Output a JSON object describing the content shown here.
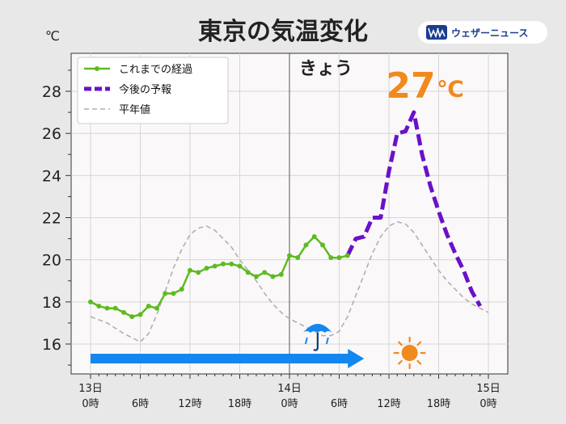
{
  "header": {
    "title": "東京の気温変化",
    "unit": "℃",
    "brand_text": "ウェザーニュース",
    "brand_logo": "wn-logo-icon"
  },
  "annotations": {
    "today_label": "きょう",
    "peak_value": "27",
    "peak_unit": "℃"
  },
  "colors": {
    "observed": "#5dbb1f",
    "forecast": "#6a11c8",
    "normal": "#b0b0b0",
    "rain_arrow": "#1486f0",
    "sun": "#f08a1c",
    "peak_text": "#f08a1c"
  },
  "icons": {
    "rain": "umbrella-rain-icon",
    "sun": "sun-icon"
  },
  "chart_data": {
    "type": "line",
    "x_unit": "hours from 13日 0時",
    "xlim": [
      0,
      48
    ],
    "ylim": [
      15,
      30
    ],
    "yticks": [
      16,
      18,
      20,
      22,
      24,
      26,
      28
    ],
    "xticks": [
      {
        "x": 0,
        "line1": "13日",
        "line2": "0時"
      },
      {
        "x": 6,
        "line1": "",
        "line2": "6時"
      },
      {
        "x": 12,
        "line1": "",
        "line2": "12時"
      },
      {
        "x": 18,
        "line1": "",
        "line2": "18時"
      },
      {
        "x": 24,
        "line1": "14日",
        "line2": "0時"
      },
      {
        "x": 30,
        "line1": "",
        "line2": "6時"
      },
      {
        "x": 36,
        "line1": "",
        "line2": "12時"
      },
      {
        "x": 42,
        "line1": "",
        "line2": "18時"
      },
      {
        "x": 48,
        "line1": "15日",
        "line2": "0時"
      }
    ],
    "today_marker_x": 24,
    "grid": true,
    "legend": {
      "position": "top-left"
    },
    "series": [
      {
        "name": "これまでの経過",
        "style": "solid-markers",
        "x": [
          0,
          1,
          2,
          3,
          4,
          5,
          6,
          7,
          8,
          9,
          10,
          11,
          12,
          13,
          14,
          15,
          16,
          17,
          18,
          19,
          20,
          21,
          22,
          23,
          24,
          25,
          26,
          27,
          28,
          29,
          30,
          31
        ],
        "y": [
          18.0,
          17.8,
          17.7,
          17.7,
          17.5,
          17.3,
          17.4,
          17.8,
          17.7,
          18.4,
          18.4,
          18.6,
          19.5,
          19.4,
          19.6,
          19.7,
          19.8,
          19.8,
          19.7,
          19.4,
          19.2,
          19.4,
          19.2,
          19.3,
          20.2,
          20.1,
          20.7,
          21.1,
          20.7,
          20.1,
          20.1,
          20.2
        ]
      },
      {
        "name": "今後の予報",
        "style": "dashed-thick",
        "x": [
          31,
          32,
          33,
          34,
          35,
          36,
          37,
          38,
          39,
          40,
          41,
          42,
          43,
          44,
          45,
          46,
          47
        ],
        "y": [
          20.2,
          21.0,
          21.1,
          22.0,
          22.0,
          24.2,
          26.0,
          26.1,
          27.0,
          25.0,
          23.5,
          22.3,
          21.2,
          20.3,
          19.5,
          18.5,
          17.8
        ]
      },
      {
        "name": "平年値",
        "style": "dashed-thin",
        "x": [
          0,
          2,
          4,
          5,
          6,
          7,
          8,
          9,
          10,
          11,
          12,
          13,
          14,
          15,
          16,
          17,
          18,
          19,
          20,
          21,
          22,
          23,
          24,
          25,
          26,
          27,
          28,
          29,
          30,
          31,
          32,
          33,
          34,
          35,
          36,
          37,
          38,
          39,
          40,
          41,
          42,
          43,
          44,
          45,
          46,
          47,
          48
        ],
        "y": [
          17.3,
          17.0,
          16.5,
          16.3,
          16.1,
          16.5,
          17.4,
          18.5,
          19.6,
          20.5,
          21.2,
          21.5,
          21.6,
          21.4,
          21.0,
          20.6,
          20.0,
          19.5,
          19.0,
          18.4,
          17.9,
          17.5,
          17.2,
          17.0,
          16.8,
          16.6,
          16.4,
          16.4,
          16.6,
          17.3,
          18.3,
          19.3,
          20.3,
          21.1,
          21.6,
          21.8,
          21.7,
          21.3,
          20.7,
          20.1,
          19.5,
          19.0,
          18.6,
          18.2,
          17.9,
          17.7,
          17.5
        ]
      }
    ],
    "rain_period": {
      "x_start": 0,
      "x_end": 33
    },
    "rain_icon_x": 27.4,
    "sun_icon_x": 38.5
  }
}
